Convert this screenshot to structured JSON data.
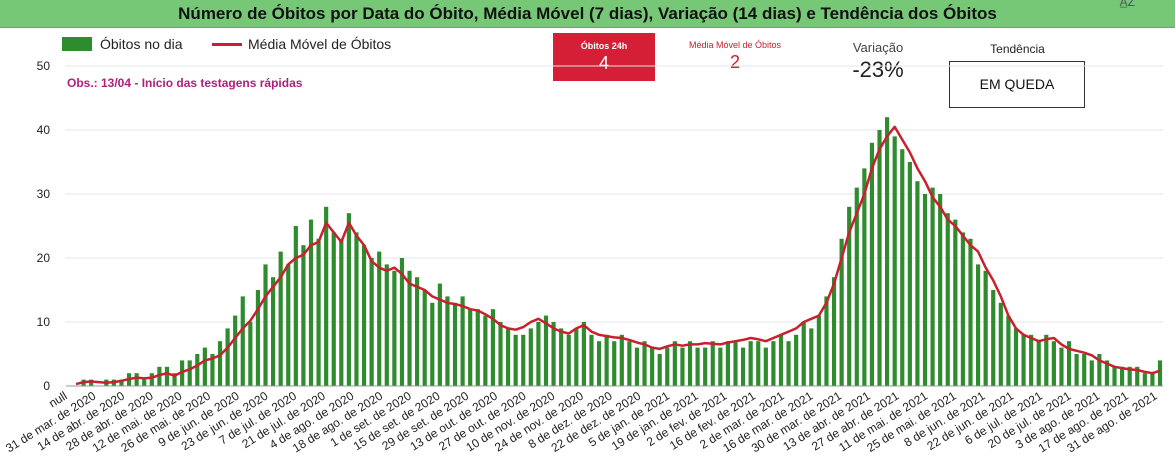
{
  "header": {
    "title": "Número de Óbitos por Data do Óbito, Média Móvel (7 dias), Variação (14 dias) e Tendência dos Óbitos",
    "corner_icon": "sort-az-icon"
  },
  "legend": {
    "bars_label": "Óbitos no dia",
    "line_label": "Média Móvel de Óbitos"
  },
  "note": "Obs.: 13/04 - Início das testagens rápidas",
  "kpis": {
    "deaths_24h_label": "Óbitos 24h",
    "deaths_24h_value": "4",
    "moving_avg_label": "Média Móvel de Óbitos",
    "moving_avg_value": "2",
    "variation_label": "Variação",
    "variation_value": "-23%",
    "trend_label": "Tendência",
    "trend_value": "EM QUEDA"
  },
  "colors": {
    "bars": "#2e8b2e",
    "line": "#c8202e",
    "header": "#76c776",
    "kpi_red": "#d41f36"
  },
  "chart_data": {
    "type": "bar",
    "ylim": [
      0,
      50
    ],
    "y_ticks": [
      0,
      10,
      20,
      30,
      40,
      50
    ],
    "x_tick_labels": [
      "null",
      "31 de mar. de 2020",
      "14 de abr. de 2020",
      "28 de abr. de 2020",
      "12 de mai. de 2020",
      "26 de mai. de 2020",
      "9 de jun. de 2020",
      "23 de jun. de 2020",
      "7 de jul. de 2020",
      "21 de jul. de 2020",
      "4 de ago. de 2020",
      "18 de ago. de 2020",
      "1 de set. de 2020",
      "15 de set. de 2020",
      "29 de set. de 2020",
      "13 de out. de 2020",
      "27 de out. de 2020",
      "10 de nov. de 2020",
      "24 de nov. de 2020",
      "8 de dez. de 2020",
      "22 de dez. de 2020",
      "5 de jan. de 2021",
      "19 de jan. de 2021",
      "2 de fev. de 2021",
      "16 de fev. de 2021",
      "2 de mar. de 2021",
      "16 de mar. de 2021",
      "30 de mar. de 2021",
      "13 de abr. de 2021",
      "27 de abr. de 2021",
      "11 de mai. de 2021",
      "25 de mai. de 2021",
      "8 de jun. de 2021",
      "22 de jun. de 2021",
      "6 de jul. de 2021",
      "20 de jul. de 2021",
      "3 de ago. de 2021",
      "17 de ago. de 2021",
      "31 de ago. de 2021"
    ],
    "series": [
      {
        "name": "Óbitos no dia",
        "kind": "bar",
        "interval_days": 3,
        "values": [
          0,
          1,
          1,
          0,
          1,
          1,
          1,
          2,
          2,
          1,
          2,
          3,
          3,
          2,
          4,
          4,
          5,
          6,
          5,
          7,
          9,
          11,
          14,
          10,
          15,
          19,
          17,
          21,
          19,
          25,
          22,
          26,
          23,
          28,
          24,
          23,
          27,
          24,
          22,
          20,
          21,
          19,
          18,
          20,
          18,
          17,
          15,
          13,
          16,
          14,
          13,
          14,
          12,
          12,
          11,
          12,
          10,
          9,
          8,
          8,
          9,
          10,
          11,
          10,
          9,
          8,
          9,
          10,
          8,
          7,
          8,
          7,
          8,
          7,
          6,
          7,
          6,
          5,
          6,
          7,
          6,
          7,
          6,
          6,
          7,
          6,
          7,
          7,
          6,
          7,
          7,
          6,
          7,
          8,
          7,
          8,
          10,
          9,
          11,
          14,
          17,
          23,
          28,
          31,
          34,
          38,
          40,
          42,
          39,
          37,
          35,
          32,
          30,
          31,
          30,
          27,
          26,
          24,
          23,
          19,
          18,
          15,
          13,
          11,
          9,
          8,
          8,
          7,
          8,
          7,
          6,
          7,
          5,
          5,
          4,
          5,
          4,
          3,
          3,
          3,
          3,
          2,
          2,
          4
        ]
      },
      {
        "name": "Média Móvel de Óbitos",
        "kind": "line",
        "interval_days": 3,
        "values": [
          0.3,
          0.6,
          0.7,
          0.6,
          0.5,
          0.6,
          0.8,
          1.1,
          1.3,
          1.2,
          1.3,
          1.7,
          2.0,
          1.6,
          2.2,
          2.6,
          3.2,
          4.0,
          4.3,
          4.8,
          6.0,
          7.5,
          9.0,
          10.2,
          12.0,
          14.0,
          15.5,
          17.0,
          19.0,
          20.0,
          20.5,
          22.0,
          22.5,
          25.5,
          24.0,
          22.5,
          25.5,
          23.5,
          22.0,
          19.5,
          18.5,
          18.0,
          18.5,
          17.5,
          16.0,
          15.5,
          15.0,
          14.0,
          13.5,
          13.0,
          12.8,
          12.5,
          12.0,
          11.8,
          11.2,
          10.5,
          9.5,
          9.0,
          8.8,
          9.2,
          10.0,
          10.5,
          9.8,
          9.0,
          8.5,
          8.2,
          9.0,
          9.5,
          8.5,
          8.0,
          7.8,
          7.6,
          7.5,
          7.2,
          6.8,
          6.5,
          6.0,
          5.8,
          6.2,
          6.5,
          6.3,
          6.5,
          6.5,
          6.7,
          6.6,
          6.5,
          6.8,
          7.0,
          7.2,
          7.5,
          7.3,
          7.0,
          7.5,
          8.0,
          8.5,
          9.0,
          10.0,
          10.5,
          11.0,
          13.0,
          16.0,
          20.0,
          24.0,
          27.0,
          30.0,
          34.0,
          37.0,
          39.0,
          40.5,
          38.5,
          36.5,
          34.0,
          32.0,
          29.5,
          28.0,
          26.0,
          25.0,
          23.5,
          22.0,
          21.0,
          18.5,
          16.5,
          14.0,
          11.0,
          9.0,
          8.0,
          7.5,
          7.0,
          7.3,
          7.5,
          6.5,
          5.8,
          5.5,
          5.2,
          4.8,
          4.0,
          3.5,
          3.0,
          2.8,
          2.6,
          2.5,
          2.2,
          2.0,
          2.4
        ]
      }
    ]
  }
}
